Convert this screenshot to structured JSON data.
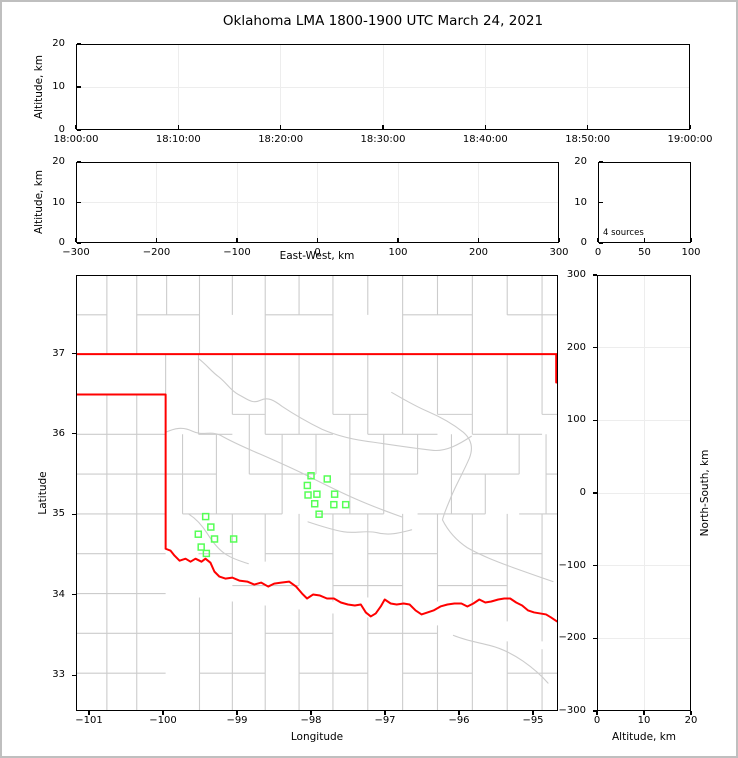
{
  "title": "Oklahoma LMA 1800-1900 UTC March 24, 2021",
  "chart_data": {
    "type": "scatter",
    "title": "Oklahoma LMA 1800-1900 UTC March 24, 2021",
    "marker": {
      "shape": "open-square",
      "color": "#55ff55"
    },
    "map_colors": {
      "state_border": "#ff0000",
      "county_border": "#cccccc"
    },
    "panels": {
      "time_altitude": {
        "ylabel": "Altitude, km",
        "y_ticks": [
          "20",
          "10",
          "0"
        ],
        "x_ticks": [
          "18:00:00",
          "18:10:00",
          "18:20:00",
          "18:30:00",
          "18:40:00",
          "18:50:00",
          "19:00:00"
        ],
        "ylim": [
          0,
          20
        ],
        "points": []
      },
      "ew_altitude": {
        "xlabel": "East-West, km",
        "ylabel": "Altitude, km",
        "x_ticks": [
          "−300",
          "−200",
          "−100",
          "0",
          "100",
          "200",
          "300"
        ],
        "y_ticks": [
          "20",
          "10",
          "0"
        ],
        "xlim": [
          -300,
          300
        ],
        "ylim": [
          0,
          20
        ],
        "points": []
      },
      "alt_histogram": {
        "annotation": "4 sources",
        "x_ticks": [
          "0",
          "50",
          "100"
        ],
        "y_ticks": [
          "20",
          "10",
          "0"
        ],
        "xlim": [
          0,
          100
        ],
        "ylim": [
          0,
          20
        ],
        "points": []
      },
      "plan_view": {
        "xlabel": "Longitude",
        "ylabel": "Latitude",
        "x_ticks": [
          "−101",
          "−100",
          "−99",
          "−98",
          "−97",
          "−96",
          "−95"
        ],
        "y_ticks": [
          "37",
          "36",
          "35",
          "34",
          "33"
        ],
        "points": [
          [
            -98.0,
            35.48
          ],
          [
            -97.78,
            35.44
          ],
          [
            -98.05,
            35.36
          ],
          [
            -98.04,
            35.24
          ],
          [
            -97.92,
            35.25
          ],
          [
            -97.68,
            35.25
          ],
          [
            -97.95,
            35.13
          ],
          [
            -97.69,
            35.12
          ],
          [
            -97.53,
            35.12
          ],
          [
            -97.89,
            35.0
          ],
          [
            -99.43,
            34.97
          ],
          [
            -99.36,
            34.84
          ],
          [
            -99.53,
            34.75
          ],
          [
            -99.31,
            34.69
          ],
          [
            -99.05,
            34.69
          ],
          [
            -99.49,
            34.59
          ],
          [
            -99.42,
            34.51
          ]
        ]
      },
      "ns_altitude": {
        "xlabel": "Altitude, km",
        "ylabel": "North-South, km",
        "x_ticks": [
          "0",
          "10",
          "20"
        ],
        "y_ticks": [
          "300",
          "200",
          "100",
          "0",
          "−100",
          "−200",
          "−300"
        ],
        "points": []
      }
    }
  }
}
